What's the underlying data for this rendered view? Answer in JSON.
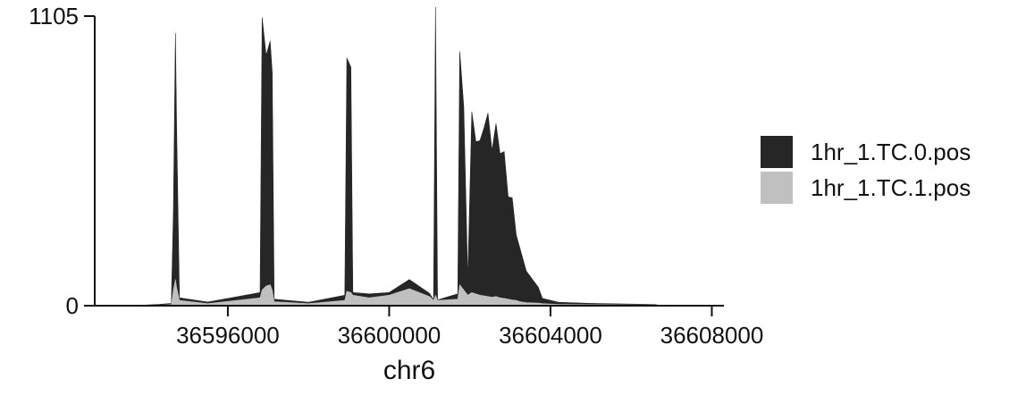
{
  "chart_data": {
    "type": "area",
    "title": "",
    "xlabel": "chr6",
    "ylabel": "",
    "xlim": [
      36592700,
      36608300
    ],
    "ylim": [
      0,
      1105
    ],
    "x_ticks": [
      36596000,
      36600000,
      36604000,
      36608000
    ],
    "x_tick_labels": [
      "36596000",
      "36600000",
      "36604000",
      "36608000"
    ],
    "y_ticks": [
      0,
      1105
    ],
    "y_tick_labels": [
      "0",
      "1105"
    ],
    "stacked": true,
    "grid": false,
    "legend_position": "right",
    "series": [
      {
        "name": "1hr_1.TC.0.pos",
        "color": "#262626",
        "points": [
          [
            36593600,
            0
          ],
          [
            36594300,
            3
          ],
          [
            36594600,
            5
          ],
          [
            36594650,
            300
          ],
          [
            36594700,
            940
          ],
          [
            36594730,
            620
          ],
          [
            36594800,
            10
          ],
          [
            36595500,
            6
          ],
          [
            36596800,
            20
          ],
          [
            36596850,
            1040
          ],
          [
            36596950,
            880
          ],
          [
            36597050,
            930
          ],
          [
            36597100,
            830
          ],
          [
            36597150,
            10
          ],
          [
            36598000,
            5
          ],
          [
            36598900,
            20
          ],
          [
            36598950,
            890
          ],
          [
            36599050,
            860
          ],
          [
            36599100,
            10
          ],
          [
            36599500,
            15
          ],
          [
            36600000,
            10
          ],
          [
            36600500,
            35
          ],
          [
            36601000,
            12
          ],
          [
            36601100,
            2
          ],
          [
            36601150,
            1100
          ],
          [
            36601200,
            2
          ],
          [
            36601700,
            20
          ],
          [
            36601750,
            890
          ],
          [
            36601850,
            700
          ],
          [
            36601950,
            60
          ],
          [
            36602050,
            690
          ],
          [
            36602150,
            580
          ],
          [
            36602250,
            590
          ],
          [
            36602350,
            640
          ],
          [
            36602450,
            700
          ],
          [
            36602550,
            560
          ],
          [
            36602650,
            660
          ],
          [
            36602750,
            550
          ],
          [
            36602850,
            560
          ],
          [
            36602950,
            390
          ],
          [
            36603050,
            390
          ],
          [
            36603150,
            250
          ],
          [
            36603250,
            200
          ],
          [
            36603400,
            120
          ],
          [
            36603700,
            60
          ],
          [
            36603800,
            20
          ],
          [
            36604200,
            8
          ],
          [
            36605000,
            5
          ],
          [
            36606000,
            3
          ],
          [
            36606600,
            2
          ],
          [
            36606700,
            1
          ],
          [
            36607500,
            0
          ]
        ]
      },
      {
        "name": "1hr_1.TC.1.pos",
        "color": "#c0c0c0",
        "points": [
          [
            36593600,
            0
          ],
          [
            36594300,
            2
          ],
          [
            36594600,
            4
          ],
          [
            36594650,
            60
          ],
          [
            36594700,
            100
          ],
          [
            36594730,
            70
          ],
          [
            36594800,
            20
          ],
          [
            36595500,
            8
          ],
          [
            36596800,
            30
          ],
          [
            36596850,
            60
          ],
          [
            36596950,
            75
          ],
          [
            36597050,
            80
          ],
          [
            36597100,
            60
          ],
          [
            36597150,
            15
          ],
          [
            36598000,
            8
          ],
          [
            36598900,
            20
          ],
          [
            36598950,
            55
          ],
          [
            36599050,
            50
          ],
          [
            36599100,
            40
          ],
          [
            36599500,
            30
          ],
          [
            36600000,
            40
          ],
          [
            36600500,
            65
          ],
          [
            36601000,
            35
          ],
          [
            36601100,
            20
          ],
          [
            36601150,
            40
          ],
          [
            36601200,
            20
          ],
          [
            36601700,
            25
          ],
          [
            36601750,
            80
          ],
          [
            36601850,
            60
          ],
          [
            36601950,
            40
          ],
          [
            36602050,
            50
          ],
          [
            36602150,
            45
          ],
          [
            36602250,
            40
          ],
          [
            36602350,
            38
          ],
          [
            36602450,
            35
          ],
          [
            36602550,
            32
          ],
          [
            36602650,
            35
          ],
          [
            36602750,
            30
          ],
          [
            36602850,
            28
          ],
          [
            36602950,
            25
          ],
          [
            36603050,
            22
          ],
          [
            36603150,
            20
          ],
          [
            36603250,
            15
          ],
          [
            36603400,
            12
          ],
          [
            36603700,
            10
          ],
          [
            36603800,
            8
          ],
          [
            36604200,
            5
          ],
          [
            36605000,
            4
          ],
          [
            36606000,
            3
          ],
          [
            36606600,
            2
          ],
          [
            36606700,
            1
          ],
          [
            36607500,
            0
          ]
        ]
      }
    ]
  }
}
